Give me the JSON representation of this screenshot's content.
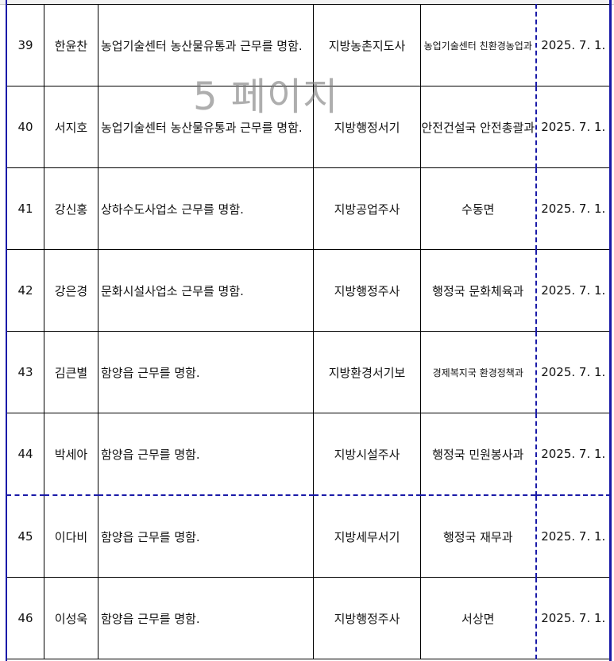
{
  "watermark": "5 페이지",
  "colors": {
    "page_break": "#1a1aa8",
    "grid": "#000000"
  },
  "rows": [
    {
      "no": "39",
      "name": "한윤찬",
      "dept": "농업기술센터 농산물유통과 근무를 명함.",
      "rank": "지방농촌지도사",
      "prev": "농업기술센터 친환경농업과",
      "date": "2025. 7. 1."
    },
    {
      "no": "40",
      "name": "서지호",
      "dept": "농업기술센터 농산물유통과 근무를 명함.",
      "rank": "지방행정서기",
      "prev": "안전건설국 안전총괄과",
      "date": "2025. 7. 1."
    },
    {
      "no": "41",
      "name": "강신홍",
      "dept": "상하수도사업소 근무를 명함.",
      "rank": "지방공업주사",
      "prev": "수동면",
      "date": "2025. 7. 1."
    },
    {
      "no": "42",
      "name": "강은경",
      "dept": "문화시설사업소 근무를 명함.",
      "rank": "지방행정주사",
      "prev": "행정국 문화체육과",
      "date": "2025. 7. 1."
    },
    {
      "no": "43",
      "name": "김큰별",
      "dept": "함양읍 근무를 명함.",
      "rank": "지방환경서기보",
      "prev": "경제복지국 환경정책과",
      "date": "2025. 7. 1."
    },
    {
      "no": "44",
      "name": "박세아",
      "dept": "함양읍 근무를 명함.",
      "rank": "지방시설주사",
      "prev": "행정국 민원봉사과",
      "date": "2025. 7. 1."
    },
    {
      "no": "45",
      "name": "이다비",
      "dept": "함양읍 근무를 명함.",
      "rank": "지방세무서기",
      "prev": "행정국 재무과",
      "date": "2025. 7. 1."
    },
    {
      "no": "46",
      "name": "이성욱",
      "dept": "함양읍 근무를 명함.",
      "rank": "지방행정주사",
      "prev": "서상면",
      "date": "2025. 7. 1."
    }
  ]
}
